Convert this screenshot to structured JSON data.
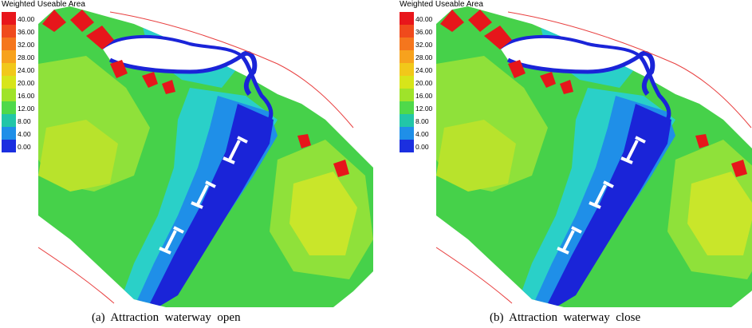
{
  "legend": {
    "title": "Weighted Useable Area",
    "entries": [
      {
        "label": "40.00",
        "color": "#e8161b"
      },
      {
        "label": "36.00",
        "color": "#f04a1c"
      },
      {
        "label": "32.00",
        "color": "#f5761d"
      },
      {
        "label": "28.00",
        "color": "#f7a21d"
      },
      {
        "label": "24.00",
        "color": "#f1c81a"
      },
      {
        "label": "20.00",
        "color": "#d7e51a"
      },
      {
        "label": "16.00",
        "color": "#9fe32a"
      },
      {
        "label": "12.00",
        "color": "#4fd94a"
      },
      {
        "label": "8.00",
        "color": "#22c6a8"
      },
      {
        "label": "4.00",
        "color": "#1f8fe8"
      },
      {
        "label": "0.00",
        "color": "#1b2fe0"
      }
    ]
  },
  "panels": [
    {
      "caption": "(a)  Attraction  waterway  open"
    },
    {
      "caption": "(b)  Attraction  waterway  close"
    }
  ],
  "colors": {
    "water_low": "#1a24d8",
    "water_mid": "#1f8fe8",
    "cyan": "#2ad0c8",
    "green": "#46d14a",
    "lightgreen": "#8fe13a",
    "yellowgreen": "#c9e62a",
    "red": "#e6161b",
    "bank_line": "#e84040",
    "structure": "#ffffff"
  }
}
